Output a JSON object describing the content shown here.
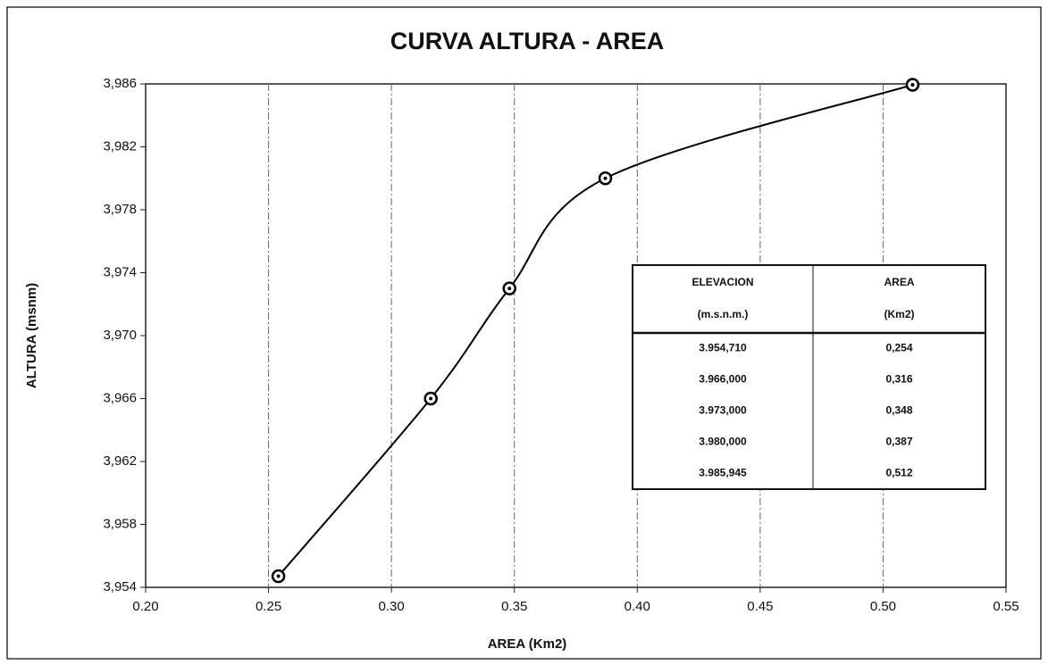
{
  "chart_data": {
    "type": "line",
    "title": "CURVA ALTURA - AREA",
    "x_label": "AREA (Km2)",
    "y_label": "ALTURA  (msnm)",
    "x": [
      0.254,
      0.316,
      0.348,
      0.387,
      0.512
    ],
    "series": [
      {
        "color": "#000000",
        "values": [
          3954.71,
          3966,
          3973,
          3980,
          3985.945
        ]
      }
    ],
    "xlim": [
      0.2,
      0.55
    ],
    "xticks": [
      {
        "value": 0.2,
        "label": "0.20"
      },
      {
        "value": 0.25,
        "label": "0.25"
      },
      {
        "value": 0.3,
        "label": "0.30"
      },
      {
        "value": 0.35,
        "label": "0.35"
      },
      {
        "value": 0.4,
        "label": "0.40"
      },
      {
        "value": 0.45,
        "label": "0.45"
      },
      {
        "value": 0.5,
        "label": "0.50"
      },
      {
        "value": 0.55,
        "label": "0.55"
      }
    ],
    "ylim": [
      3954,
      3986
    ],
    "yticks": [
      {
        "value": 3954,
        "label": "3,954"
      },
      {
        "value": 3958,
        "label": "3,958"
      },
      {
        "value": 3962,
        "label": "3,962"
      },
      {
        "value": 3966,
        "label": "3,966"
      },
      {
        "value": 3970,
        "label": "3,970"
      },
      {
        "value": 3974,
        "label": "3,974"
      },
      {
        "value": 3978,
        "label": "3,978"
      },
      {
        "value": 3982,
        "label": "3,982"
      },
      {
        "value": 3986,
        "label": "3,986"
      }
    ],
    "grid": true,
    "table": {
      "columns": [
        [
          "ELEVACION",
          "(m.s.n.m.)"
        ],
        [
          "AREA",
          "(Km2)"
        ]
      ],
      "rows": [
        [
          "3.954,710",
          "0,254"
        ],
        [
          "3.966,000",
          "0,316"
        ],
        [
          "3.973,000",
          "0,348"
        ],
        [
          "3.980,000",
          "0,387"
        ],
        [
          "3.985,945",
          "0,512"
        ]
      ]
    }
  }
}
